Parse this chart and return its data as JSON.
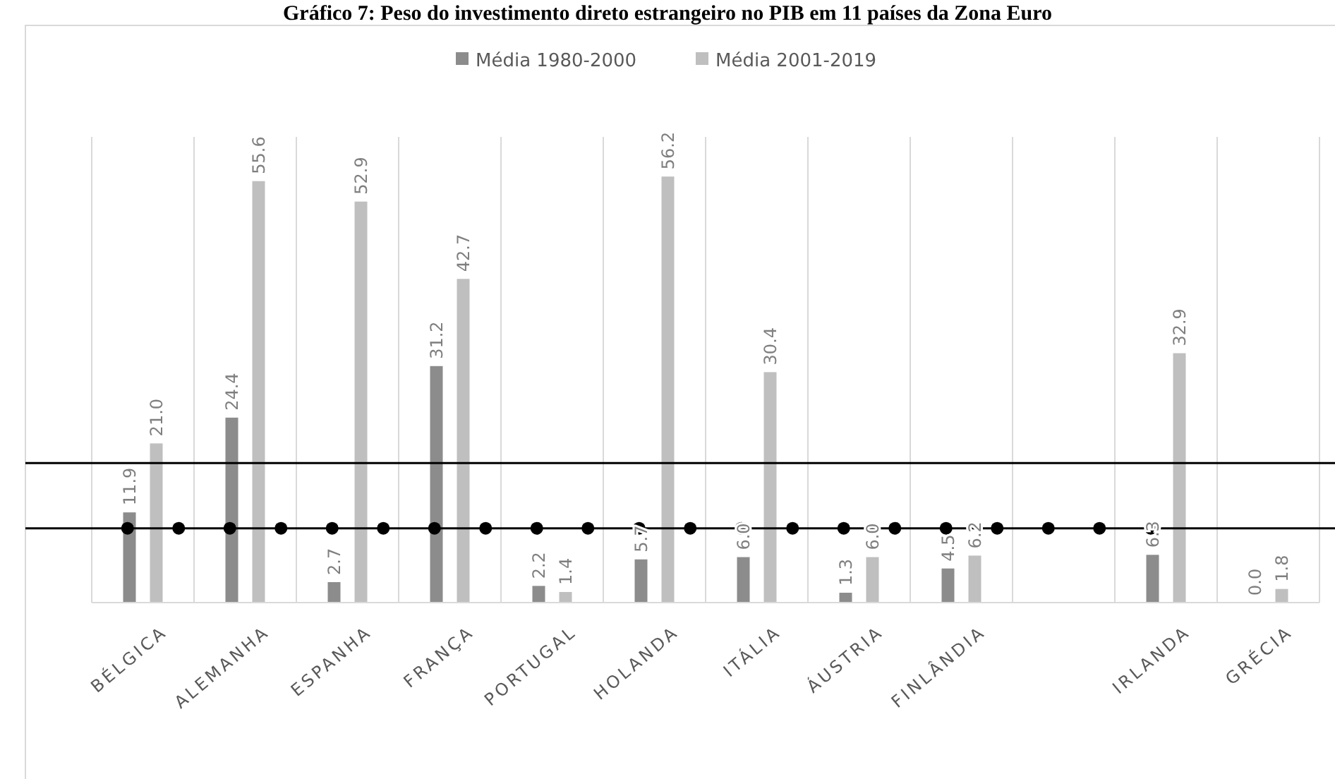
{
  "chart_data": {
    "type": "bar",
    "title": "Gráfico 7: Peso do investimento direto estrangeiro no PIB em 11 países da Zona Euro",
    "categories": [
      "BÉLGICA",
      "ALEMANHA",
      "ESPANHA",
      "FRANÇA",
      "PORTUGAL",
      "HOLANDA",
      "ITÁLIA",
      "ÁUSTRIA",
      "FINLÂNDIA",
      null,
      "IRLANDA",
      "GRÉCIA"
    ],
    "series": [
      {
        "name": "Média 1980-2000",
        "color": "#8c8c8c",
        "values": [
          11.9,
          24.4,
          2.7,
          31.2,
          2.2,
          5.7,
          6.0,
          1.3,
          4.5,
          null,
          6.3,
          0.0
        ],
        "value_labels": [
          "11.9",
          "24.4",
          "2.7",
          "31.2",
          "2.2",
          "5.7",
          "6.0",
          "1.3",
          "4.5",
          null,
          "6.3",
          "0.0"
        ]
      },
      {
        "name": "Média 2001-2019",
        "color": "#bfbfbf",
        "values": [
          21.0,
          55.6,
          52.9,
          42.7,
          1.4,
          56.2,
          30.4,
          6.0,
          6.2,
          null,
          32.9,
          1.8
        ],
        "value_labels": [
          "21.0",
          "55.6",
          "52.9",
          "42.7",
          "1.4",
          "56.2",
          "30.4",
          "6.0",
          "6.2",
          null,
          "32.9",
          "1.8"
        ]
      }
    ],
    "ref_lines": [
      {
        "axis": "y",
        "value": 18.4,
        "color": "#000000"
      },
      {
        "axis": "y",
        "value": 9.8,
        "color": "#000000"
      }
    ],
    "grid": "x",
    "legend": "top"
  }
}
